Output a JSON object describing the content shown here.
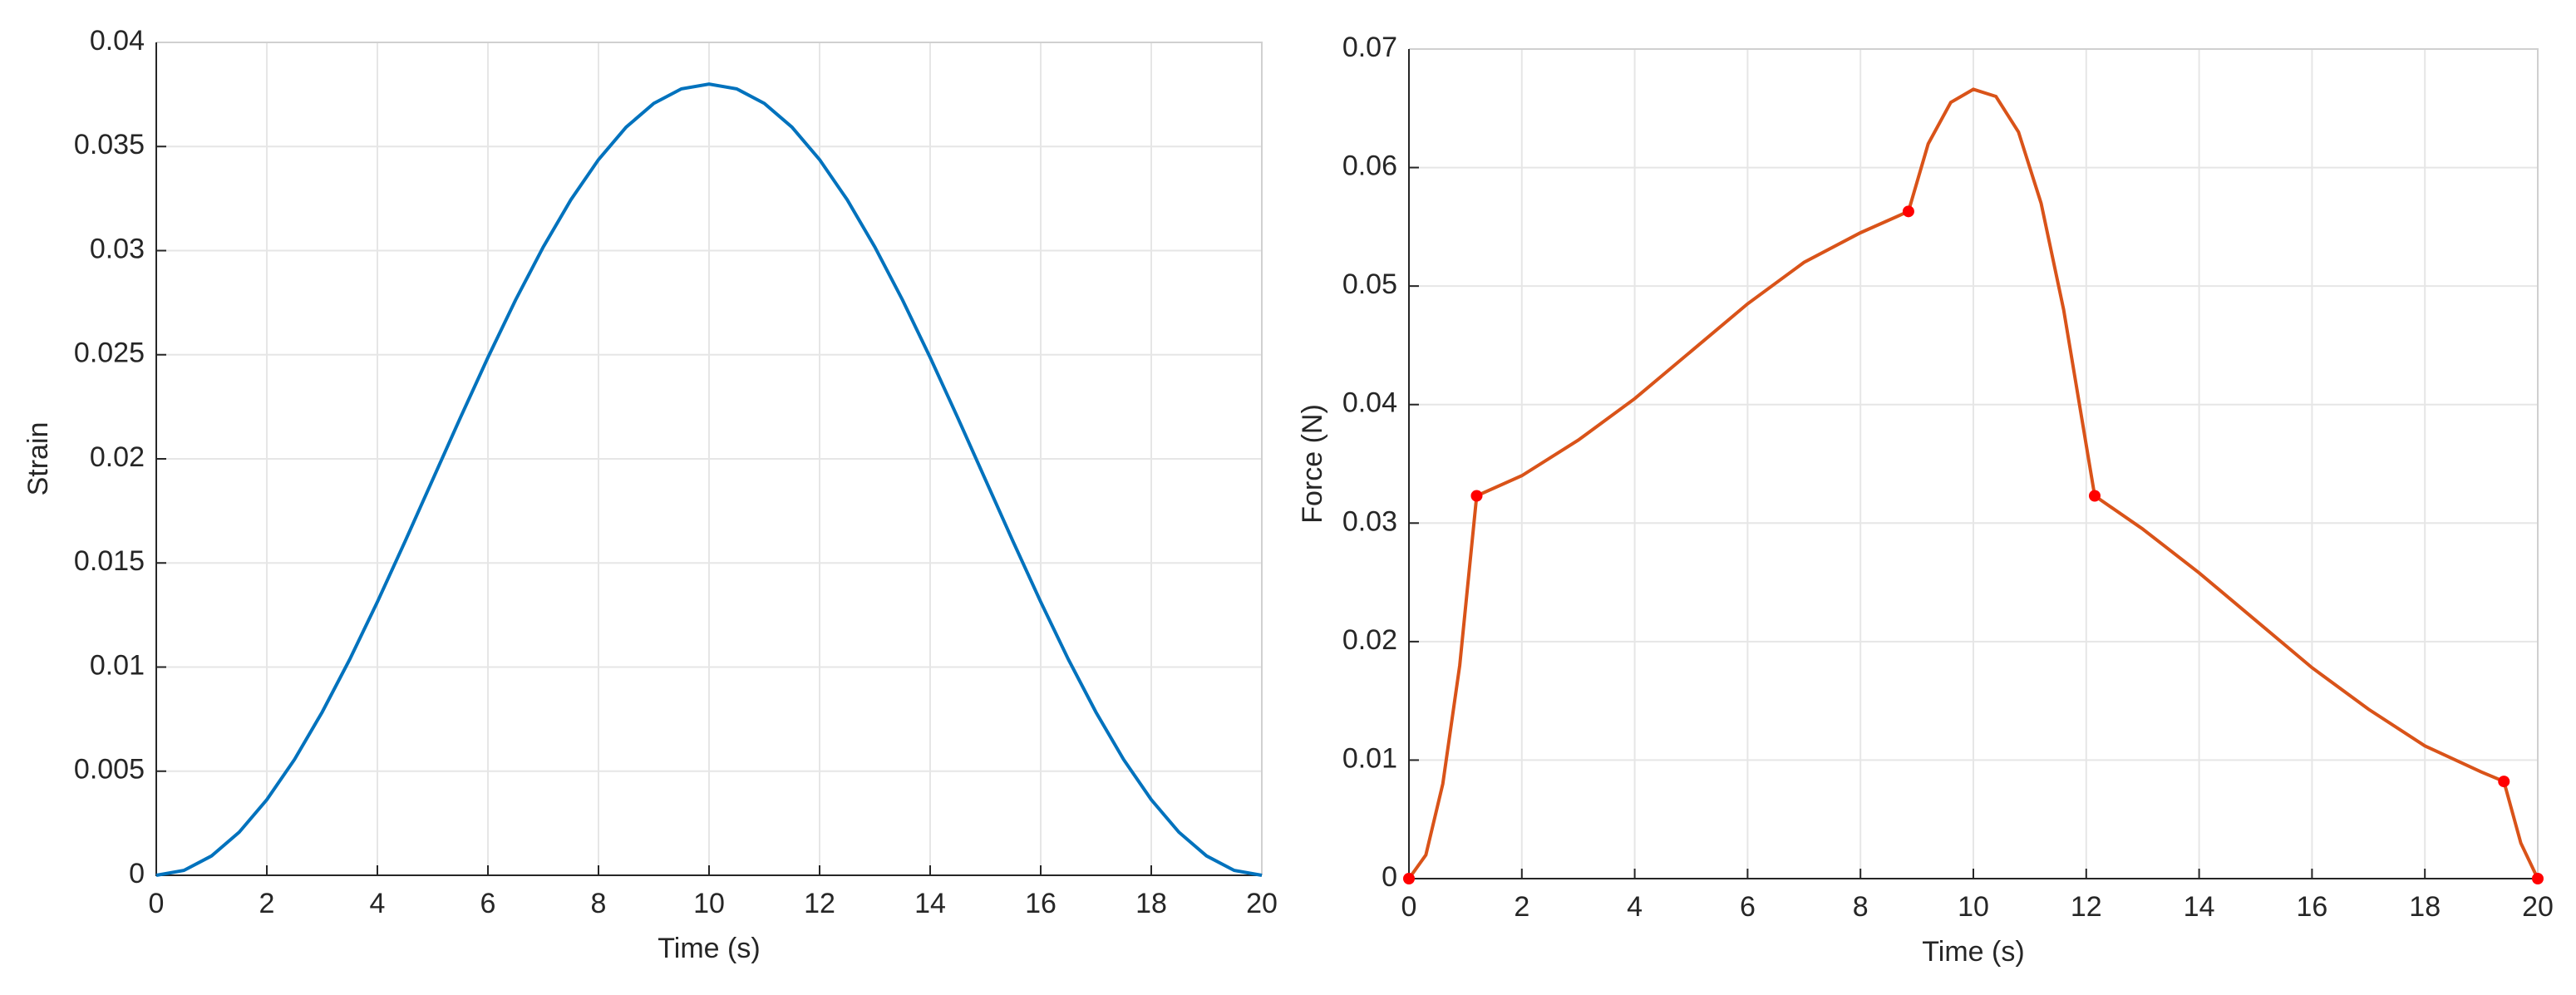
{
  "chart_data": [
    {
      "type": "line",
      "xlabel": "Time (s)",
      "ylabel": "Strain",
      "color": "#0072bd",
      "grid": true,
      "xlim": [
        0,
        20
      ],
      "ylim": [
        0,
        0.04
      ],
      "xticks": [
        0,
        2,
        4,
        6,
        8,
        10,
        12,
        14,
        16,
        18,
        20
      ],
      "yticks": [
        0,
        0.005,
        0.01,
        0.015,
        0.02,
        0.025,
        0.03,
        0.035,
        0.04
      ],
      "x": [
        0,
        0.5,
        1,
        1.5,
        2,
        2.5,
        3,
        3.5,
        4,
        4.5,
        5,
        5.5,
        6,
        6.5,
        7,
        7.5,
        8,
        8.5,
        9,
        9.5,
        10,
        10.5,
        11,
        11.5,
        12,
        12.5,
        13,
        13.5,
        14,
        14.5,
        15,
        15.5,
        16,
        16.5,
        17,
        17.5,
        18,
        18.5,
        19,
        19.5,
        20
      ],
      "values": [
        0,
        0.000234,
        0.00093,
        0.00207,
        0.00363,
        0.00556,
        0.00783,
        0.01037,
        0.01313,
        0.01603,
        0.019,
        0.02197,
        0.02487,
        0.02763,
        0.03017,
        0.03244,
        0.03437,
        0.03593,
        0.03707,
        0.03777,
        0.038,
        0.03777,
        0.03707,
        0.03593,
        0.03437,
        0.03244,
        0.03017,
        0.02763,
        0.02487,
        0.02197,
        0.019,
        0.01603,
        0.01313,
        0.01037,
        0.00783,
        0.00556,
        0.00363,
        0.00207,
        0.00093,
        0.000234,
        0
      ]
    },
    {
      "type": "line",
      "xlabel": "Time (s)",
      "ylabel": "Force (N)",
      "color": "#d95319",
      "grid": true,
      "xlim": [
        0,
        20
      ],
      "ylim": [
        0,
        0.07
      ],
      "xticks": [
        0,
        2,
        4,
        6,
        8,
        10,
        12,
        14,
        16,
        18,
        20
      ],
      "yticks": [
        0,
        0.01,
        0.02,
        0.03,
        0.04,
        0.05,
        0.06,
        0.07
      ],
      "x": [
        0,
        0.3,
        0.6,
        0.9,
        1.2,
        2,
        3,
        4,
        5,
        6,
        7,
        8,
        8.85,
        9.2,
        9.6,
        10,
        10.4,
        10.8,
        11.2,
        11.6,
        12.15,
        13,
        14,
        15,
        16,
        17,
        18,
        19,
        19.4,
        19.7,
        20
      ],
      "values": [
        0,
        0.002,
        0.008,
        0.018,
        0.0323,
        0.034,
        0.037,
        0.0405,
        0.0445,
        0.0485,
        0.052,
        0.0545,
        0.0563,
        0.062,
        0.0655,
        0.0666,
        0.066,
        0.063,
        0.057,
        0.048,
        0.0323,
        0.0295,
        0.0258,
        0.0218,
        0.0178,
        0.0143,
        0.0112,
        0.009,
        0.0082,
        0.003,
        0
      ],
      "points": {
        "color": "#ff0000",
        "x": [
          0,
          1.2,
          8.85,
          12.15,
          19.4,
          20
        ],
        "values": [
          0,
          0.0323,
          0.0563,
          0.0323,
          0.0082,
          0
        ]
      }
    }
  ]
}
